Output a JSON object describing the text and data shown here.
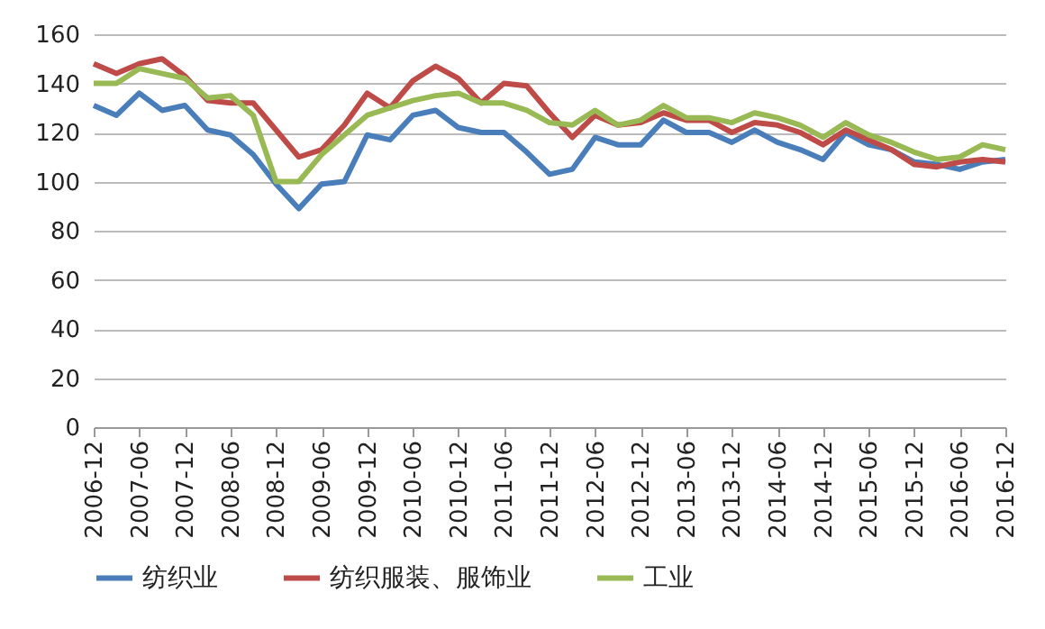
{
  "chart_data": {
    "type": "line",
    "categories": [
      "2006-12",
      null,
      "2007-06",
      null,
      "2007-12",
      null,
      "2008-06",
      null,
      "2008-12",
      null,
      "2009-06",
      null,
      "2009-12",
      null,
      "2010-06",
      null,
      "2010-12",
      null,
      "2011-06",
      null,
      "2011-12",
      null,
      "2012-06",
      null,
      "2012-12",
      null,
      "2013-06",
      null,
      "2013-12",
      null,
      "2014-06",
      null,
      "2014-12",
      null,
      "2015-06",
      null,
      "2015-12",
      null,
      "2016-06",
      null,
      "2016-12"
    ],
    "series": [
      {
        "name": "纺织业",
        "color": "#4a7ebb",
        "values": [
          131,
          127,
          136,
          129,
          131,
          121,
          119,
          111,
          99,
          89,
          99,
          100,
          119,
          117,
          127,
          129,
          122,
          120,
          120,
          112,
          103,
          105,
          118,
          115,
          115,
          125,
          120,
          120,
          116,
          121,
          116,
          113,
          109,
          120,
          115,
          113,
          108,
          107,
          105,
          108,
          109
        ]
      },
      {
        "name": "纺织服装、服饰业",
        "color": "#be4b48",
        "values": [
          148,
          144,
          148,
          150,
          143,
          133,
          132,
          132,
          121,
          110,
          113,
          123,
          136,
          130,
          141,
          147,
          142,
          132,
          140,
          139,
          128,
          118,
          127,
          123,
          124,
          128,
          125,
          125,
          120,
          124,
          123,
          120,
          115,
          121,
          117,
          113,
          107,
          106,
          108,
          109,
          108
        ]
      },
      {
        "name": "工业",
        "color": "#98b954",
        "values": [
          140,
          140,
          146,
          144,
          142,
          134,
          135,
          127,
          100,
          100,
          111,
          119,
          127,
          130,
          133,
          135,
          136,
          132,
          132,
          129,
          124,
          123,
          129,
          123,
          125,
          131,
          126,
          126,
          124,
          128,
          126,
          123,
          118,
          124,
          119,
          116,
          112,
          109,
          110,
          115,
          113
        ]
      }
    ],
    "ylim": [
      0,
      160
    ],
    "yticks": [
      0,
      20,
      40,
      60,
      80,
      100,
      120,
      140,
      160
    ],
    "grid": "y",
    "legend": "bottom",
    "marker": "none",
    "line_style": "solid"
  }
}
